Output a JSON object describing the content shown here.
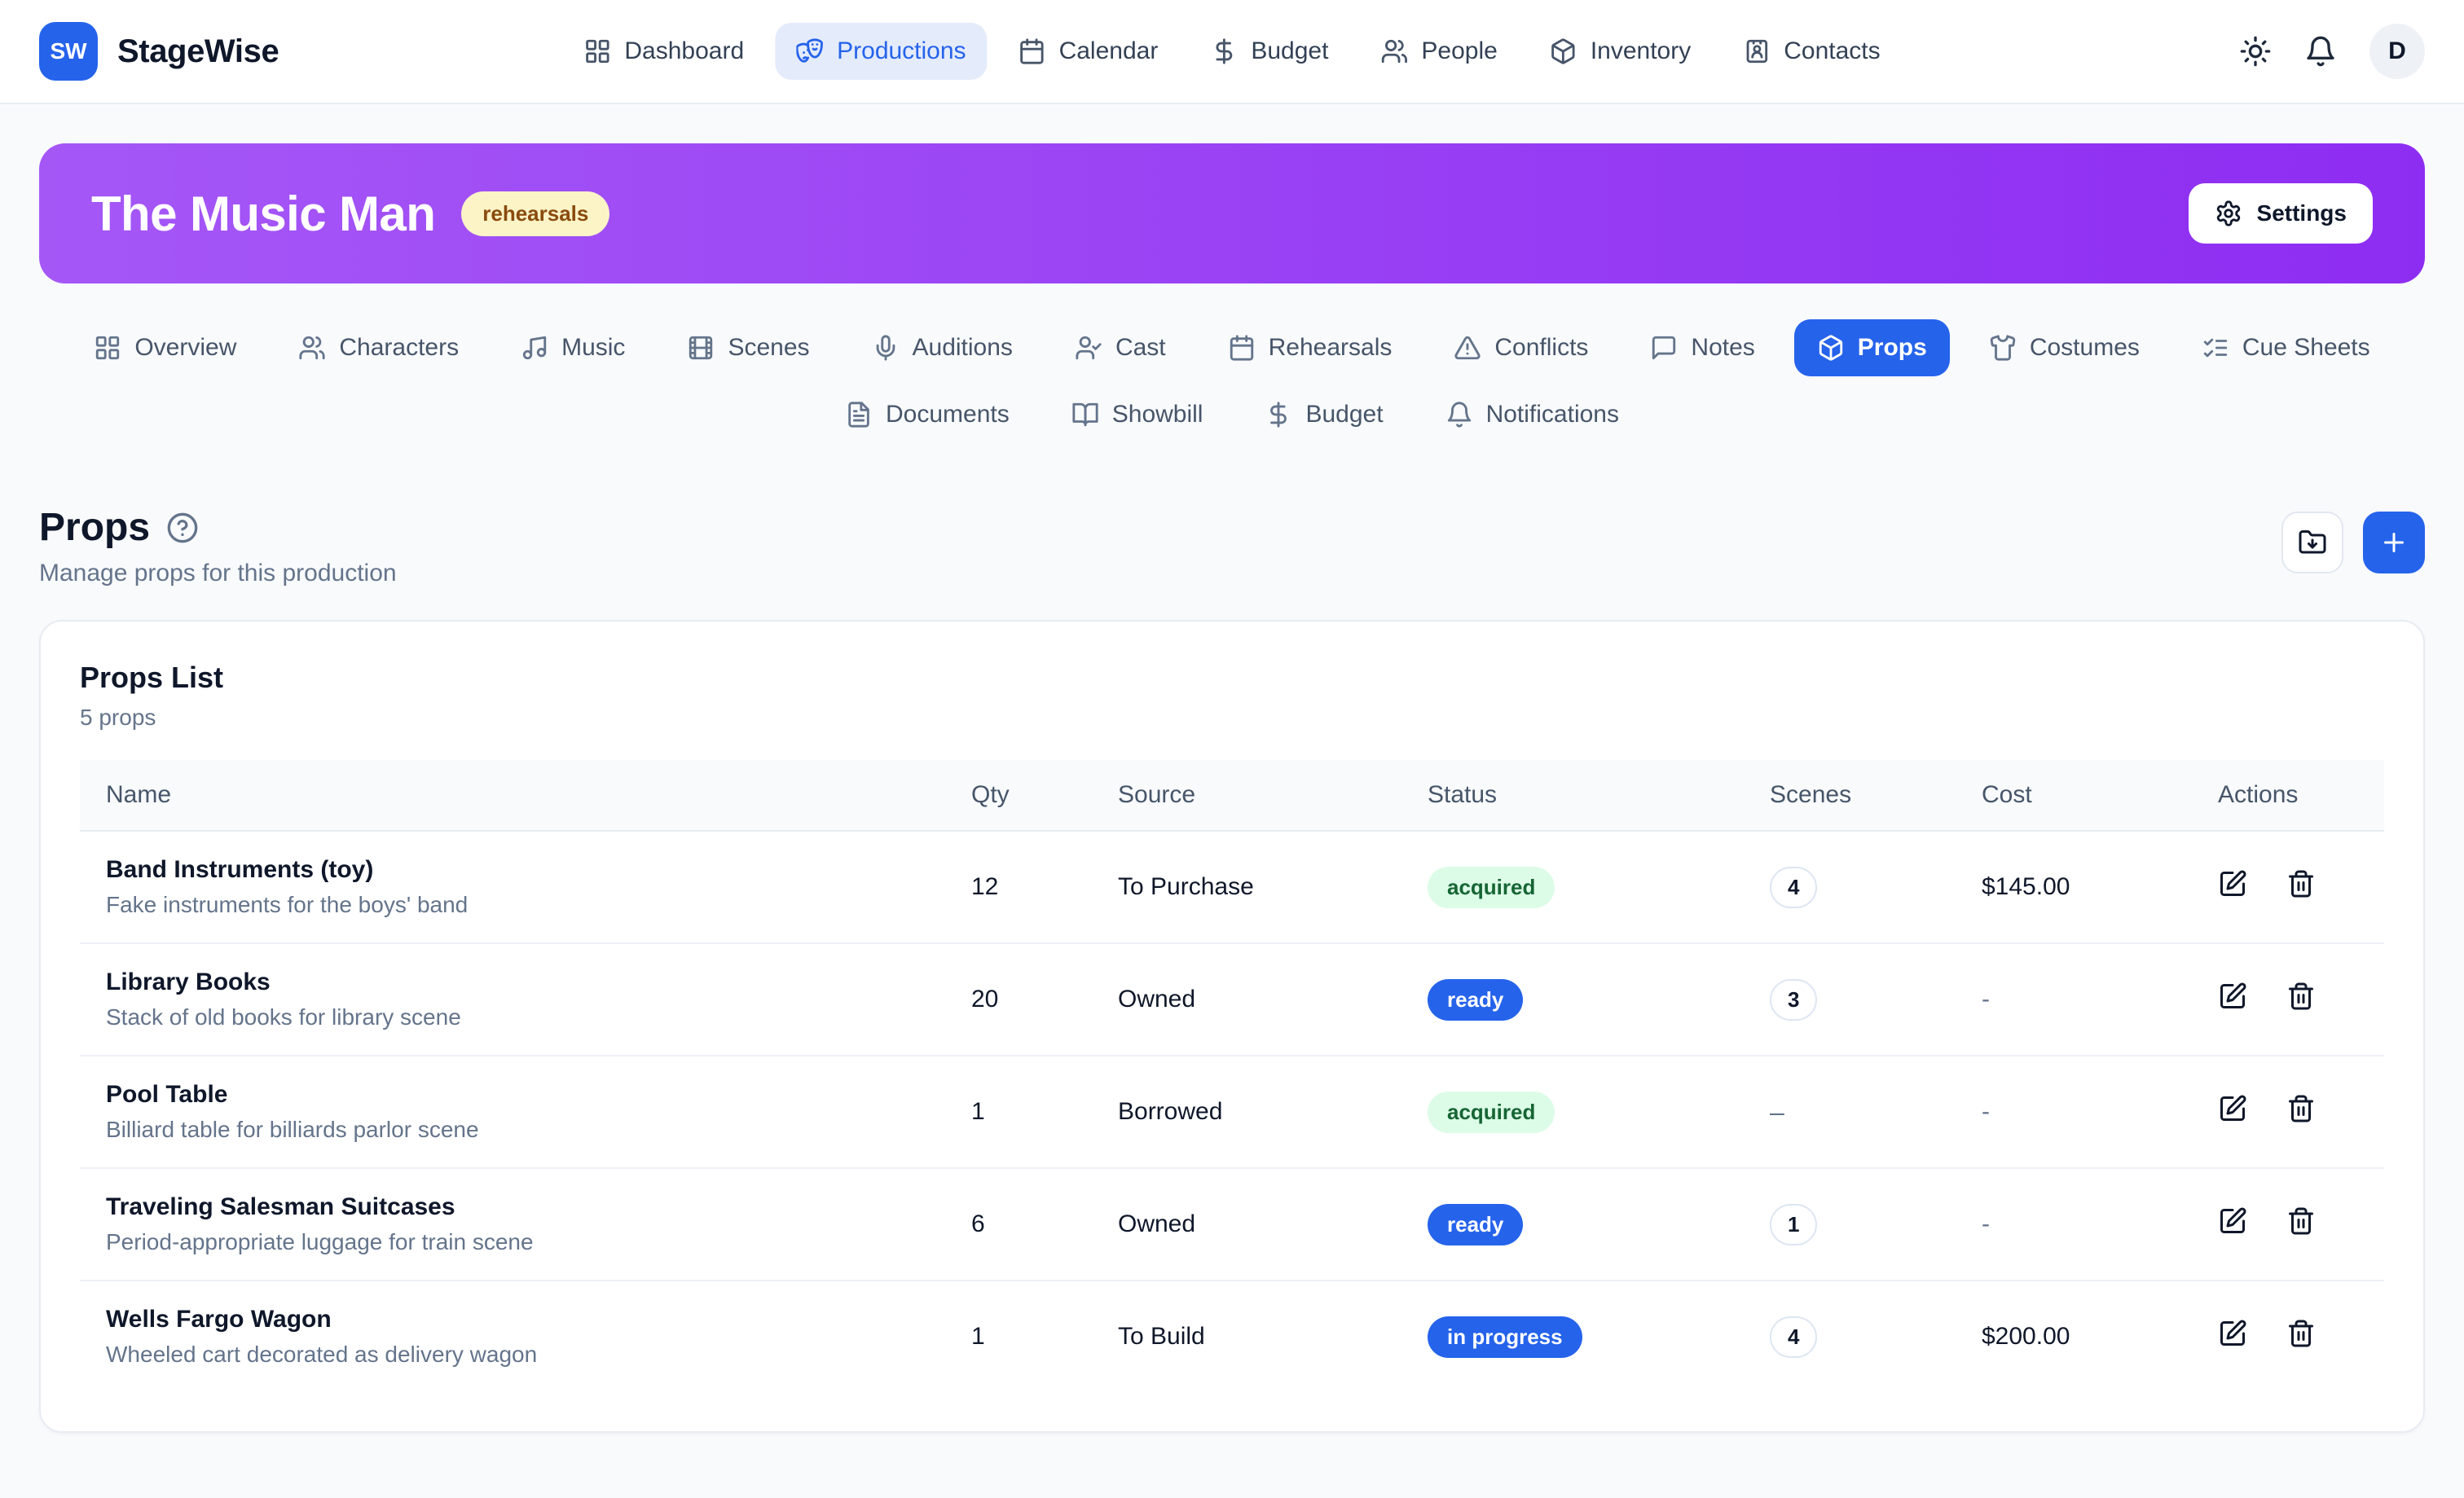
{
  "header": {
    "logo_text": "SW",
    "app_name": "StageWise",
    "nav_items": [
      {
        "label": "Dashboard",
        "icon": "grid-icon",
        "active": false
      },
      {
        "label": "Productions",
        "icon": "drama-masks-icon",
        "active": true
      },
      {
        "label": "Calendar",
        "icon": "calendar-icon",
        "active": false
      },
      {
        "label": "Budget",
        "icon": "dollar-icon",
        "active": false
      },
      {
        "label": "People",
        "icon": "people-icon",
        "active": false
      },
      {
        "label": "Inventory",
        "icon": "package-icon",
        "active": false
      },
      {
        "label": "Contacts",
        "icon": "contact-card-icon",
        "active": false
      }
    ],
    "avatar_initial": "D"
  },
  "banner": {
    "title": "The Music Man",
    "status_badge": "rehearsals",
    "settings_label": "Settings"
  },
  "tabs": {
    "row1": [
      {
        "label": "Overview",
        "icon": "grid-icon",
        "active": false
      },
      {
        "label": "Characters",
        "icon": "people-icon",
        "active": false
      },
      {
        "label": "Music",
        "icon": "music-note-icon",
        "active": false
      },
      {
        "label": "Scenes",
        "icon": "film-icon",
        "active": false
      },
      {
        "label": "Auditions",
        "icon": "microphone-icon",
        "active": false
      },
      {
        "label": "Cast",
        "icon": "user-check-icon",
        "active": false
      },
      {
        "label": "Rehearsals",
        "icon": "calendar-icon",
        "active": false
      },
      {
        "label": "Conflicts",
        "icon": "warning-triangle-icon",
        "active": false
      },
      {
        "label": "Notes",
        "icon": "speech-bubble-icon",
        "active": false
      },
      {
        "label": "Props",
        "icon": "package-icon",
        "active": true
      },
      {
        "label": "Costumes",
        "icon": "shirt-icon",
        "active": false
      },
      {
        "label": "Cue Sheets",
        "icon": "checklist-icon",
        "active": false
      }
    ],
    "row2": [
      {
        "label": "Documents",
        "icon": "document-icon",
        "active": false
      },
      {
        "label": "Showbill",
        "icon": "open-book-icon",
        "active": false
      },
      {
        "label": "Budget",
        "icon": "dollar-icon",
        "active": false
      },
      {
        "label": "Notifications",
        "icon": "bell-icon",
        "active": false
      }
    ]
  },
  "section": {
    "title": "Props",
    "subtitle": "Manage props for this production"
  },
  "card": {
    "title": "Props List",
    "count_label": "5 props"
  },
  "table": {
    "headers": [
      "Name",
      "Qty",
      "Source",
      "Status",
      "Scenes",
      "Cost",
      "Actions"
    ],
    "rows": [
      {
        "name": "Band Instruments (toy)",
        "description": "Fake instruments for the boys' band",
        "qty": "12",
        "source": "To Purchase",
        "status": {
          "label": "acquired",
          "variant": "green"
        },
        "scenes": "4",
        "cost": "$145.00"
      },
      {
        "name": "Library Books",
        "description": "Stack of old books for library scene",
        "qty": "20",
        "source": "Owned",
        "status": {
          "label": "ready",
          "variant": "blue"
        },
        "scenes": "3",
        "cost": "-"
      },
      {
        "name": "Pool Table",
        "description": "Billiard table for billiards parlor scene",
        "qty": "1",
        "source": "Borrowed",
        "status": {
          "label": "acquired",
          "variant": "green"
        },
        "scenes": "–",
        "cost": "-"
      },
      {
        "name": "Traveling Salesman Suitcases",
        "description": "Period-appropriate luggage for train scene",
        "qty": "6",
        "source": "Owned",
        "status": {
          "label": "ready",
          "variant": "blue"
        },
        "scenes": "1",
        "cost": "-"
      },
      {
        "name": "Wells Fargo Wagon",
        "description": "Wheeled cart decorated as delivery wagon",
        "qty": "1",
        "source": "To Build",
        "status": {
          "label": "in progress",
          "variant": "blue"
        },
        "scenes": "4",
        "cost": "$200.00"
      }
    ]
  },
  "colors": {
    "accent_blue": "#2563eb",
    "banner_purple_start": "#a557f6",
    "banner_purple_end": "#8e2df2",
    "badge_green_bg": "#dcfce7",
    "badge_green_text": "#166534",
    "rehearsals_badge_bg": "#fcf4c7",
    "rehearsals_badge_text": "#8a4b0f"
  }
}
